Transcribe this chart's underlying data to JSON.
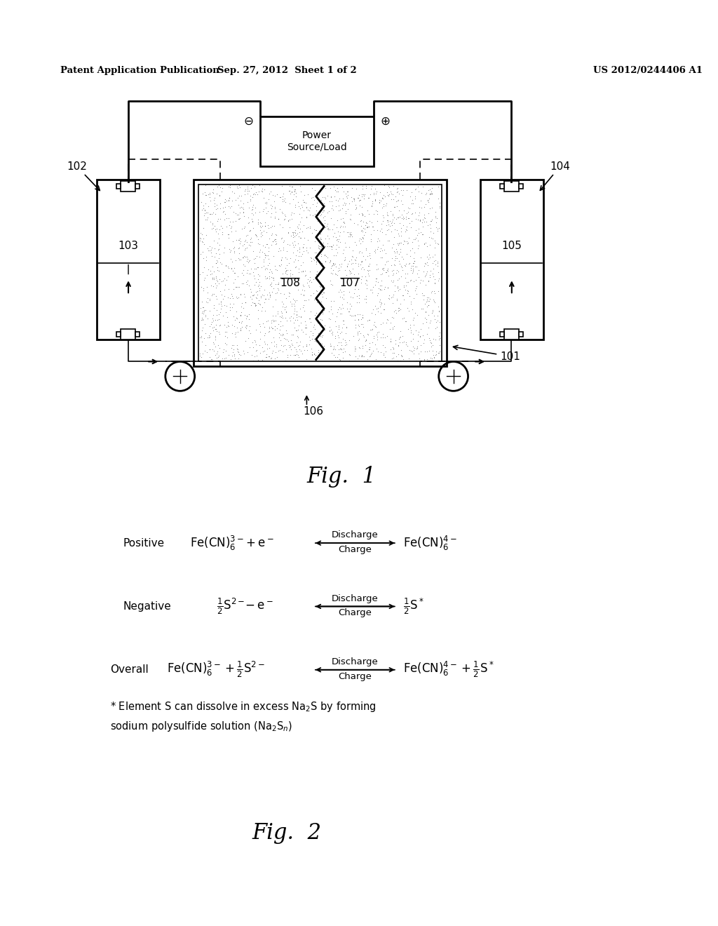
{
  "bg_color": "#ffffff",
  "header_left": "Patent Application Publication",
  "header_center": "Sep. 27, 2012  Sheet 1 of 2",
  "header_right": "US 2012/0244406 A1",
  "fig1_caption": "Fig.  1",
  "fig2_caption": "Fig.  2",
  "fig_width": 10.24,
  "fig_height": 13.2
}
